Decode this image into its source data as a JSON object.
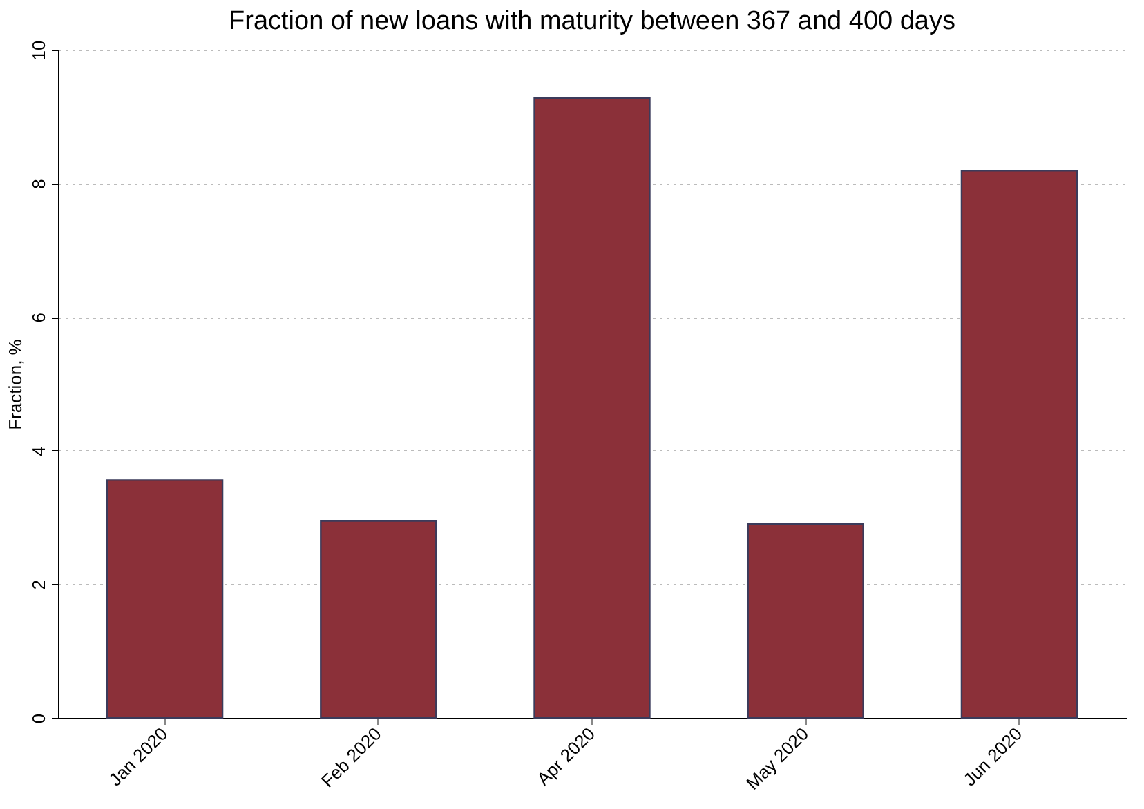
{
  "chart_data": {
    "type": "bar",
    "title": "Fraction of new loans with maturity between 367 and 400 days",
    "ylabel": "Fraction, %",
    "categories": [
      "Jan 2020",
      "Feb 2020",
      "Apr 2020",
      "May 2020",
      "Jun 2020"
    ],
    "values": [
      3.56,
      2.95,
      9.28,
      2.9,
      8.19
    ],
    "color": "#8b3039",
    "ylim": [
      0,
      10
    ],
    "yticks": [
      0,
      2,
      4,
      6,
      8,
      10
    ],
    "grid": "y"
  }
}
